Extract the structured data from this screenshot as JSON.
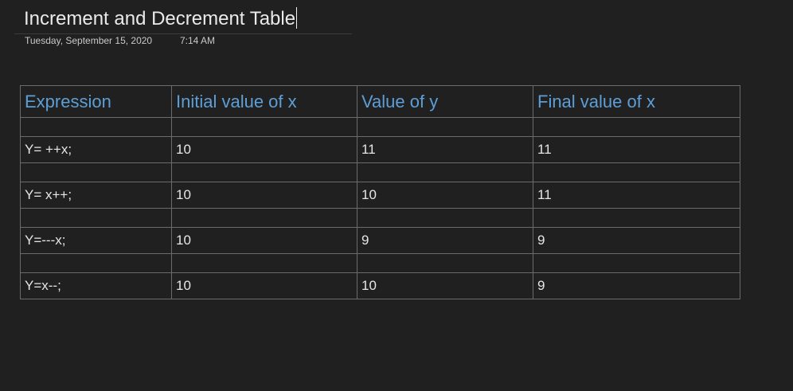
{
  "page": {
    "title": "Increment and Decrement Table",
    "date": "Tuesday, September 15, 2020",
    "time": "7:14 AM"
  },
  "table": {
    "headers": [
      "Expression",
      "Initial value of x",
      "Value of y",
      "Final value of x"
    ],
    "rows": [
      [
        "Y= ++x;",
        "10",
        "11",
        "11"
      ],
      [
        "Y= x++;",
        "10",
        "10",
        "11"
      ],
      [
        "Y=---x;",
        "10",
        "9",
        "9"
      ],
      [
        "Y=x--;",
        "10",
        "10",
        "9"
      ]
    ]
  },
  "colors": {
    "background": "#212020",
    "header_text": "#5d9ed6",
    "border": "#6b6b6b"
  }
}
